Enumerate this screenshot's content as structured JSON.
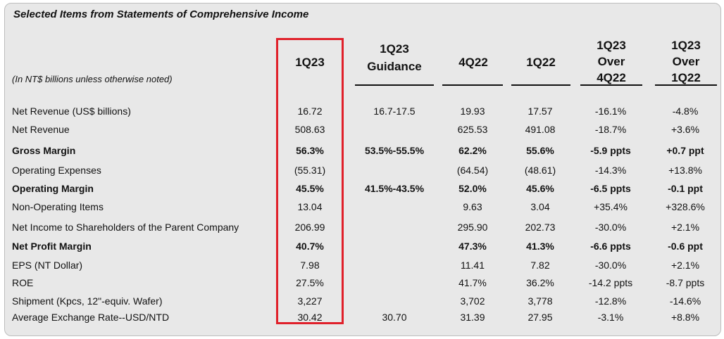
{
  "title": "Selected Items from Statements of Comprehensive Income",
  "units_note": "(In NT$ billions unless otherwise noted)",
  "columns": [
    {
      "lines": [
        "1Q23"
      ]
    },
    {
      "lines": [
        "1Q23",
        "Guidance"
      ]
    },
    {
      "lines": [
        "4Q22"
      ]
    },
    {
      "lines": [
        "1Q22"
      ]
    },
    {
      "lines": [
        "1Q23",
        "Over",
        "4Q22"
      ]
    },
    {
      "lines": [
        "1Q23",
        "Over",
        "1Q22"
      ]
    }
  ],
  "highlight_color": "#e0202a",
  "rows": [
    {
      "label": "Net Revenue (US$ billions)",
      "bold": false,
      "values": [
        "16.72",
        "16.7-17.5",
        "19.93",
        "17.57",
        "-16.1%",
        "-4.8%"
      ]
    },
    {
      "label": "Net Revenue",
      "bold": false,
      "values": [
        "508.63",
        "",
        "625.53",
        "491.08",
        "-18.7%",
        "+3.6%"
      ]
    },
    {
      "label": "Gross Margin",
      "bold": true,
      "values": [
        "56.3%",
        "53.5%-55.5%",
        "62.2%",
        "55.6%",
        "-5.9 ppts",
        "+0.7 ppt"
      ]
    },
    {
      "label": "Operating Expenses",
      "bold": false,
      "values": [
        "(55.31)",
        "",
        "(64.54)",
        "(48.61)",
        "-14.3%",
        "+13.8%"
      ]
    },
    {
      "label": "Operating Margin",
      "bold": true,
      "values": [
        "45.5%",
        "41.5%-43.5%",
        "52.0%",
        "45.6%",
        "-6.5 ppts",
        "-0.1 ppt"
      ]
    },
    {
      "label": "Non-Operating Items",
      "bold": false,
      "values": [
        "13.04",
        "",
        "9.63",
        "3.04",
        "+35.4%",
        "+328.6%"
      ]
    },
    {
      "label": "Net Income to Shareholders of the Parent Company",
      "bold": false,
      "values": [
        "206.99",
        "",
        "295.90",
        "202.73",
        "-30.0%",
        "+2.1%"
      ]
    },
    {
      "label": "Net Profit Margin",
      "bold": true,
      "values": [
        "40.7%",
        "",
        "47.3%",
        "41.3%",
        "-6.6 ppts",
        "-0.6 ppt"
      ]
    },
    {
      "label": "EPS (NT Dollar)",
      "bold": false,
      "values": [
        "7.98",
        "",
        "11.41",
        "7.82",
        "-30.0%",
        "+2.1%"
      ]
    },
    {
      "label": "ROE",
      "bold": false,
      "values": [
        "27.5%",
        "",
        "41.7%",
        "36.2%",
        "-14.2 ppts",
        "-8.7 ppts"
      ]
    },
    {
      "label": "Shipment (Kpcs, 12\"-equiv. Wafer)",
      "bold": false,
      "values": [
        "3,227",
        "",
        "3,702",
        "3,778",
        "-12.8%",
        "-14.6%"
      ]
    },
    {
      "label": "Average Exchange Rate--USD/NTD",
      "bold": false,
      "values": [
        "30.42",
        "30.70",
        "31.39",
        "27.95",
        "-3.1%",
        "+8.8%"
      ]
    }
  ]
}
